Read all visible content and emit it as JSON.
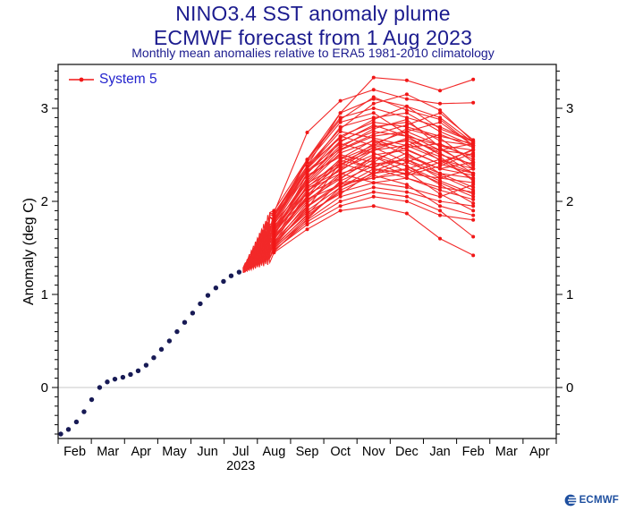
{
  "header": {
    "title": "NINO3.4 SST anomaly plume",
    "subtitle": "ECMWF forecast from 1 Aug 2023",
    "note": "Monthly mean anomalies relative to ERA5 1981-2010 climatology"
  },
  "legend": {
    "label": "System 5"
  },
  "footer": {
    "logo_text": "ECMWF"
  },
  "colors": {
    "title_navy": "#1b1b8e",
    "legend_blue": "#2323cd",
    "observed_navy": "#171a55",
    "ensemble_red": "#f11717",
    "zero_line": "#c9c9c9",
    "axis_black": "#000000",
    "logo_blue": "#1e4f9f"
  },
  "chart_data": {
    "type": "line",
    "title": "NINO3.4 SST anomaly plume",
    "subtitle": "ECMWF forecast from 1 Aug 2023",
    "annotation": "Monthly mean anomalies relative to ERA5 1981-2010 climatology",
    "ylabel": "Anomaly (deg C)",
    "ylim": [
      -0.55,
      3.47
    ],
    "yticks": [
      0,
      1,
      2,
      3
    ],
    "y_minor_step": 0.1,
    "grid": "zero-line-only",
    "legend_position": "top-left-inside",
    "x_month_labels": [
      "Feb",
      "Mar",
      "Apr",
      "May",
      "Jun",
      "Jul",
      "Aug",
      "Sep",
      "Oct",
      "Nov",
      "Dec",
      "Jan",
      "Feb",
      "Mar",
      "Apr"
    ],
    "year_label": "2023",
    "year_under_month_index": 5,
    "observed": {
      "name": "observed-analysis (blue dots, weekly)",
      "t_months_from_feb1_2023": [
        0.08,
        0.31,
        0.55,
        0.78,
        1.01,
        1.25,
        1.48,
        1.71,
        1.95,
        2.18,
        2.41,
        2.65,
        2.88,
        3.11,
        3.35,
        3.58,
        3.81,
        4.05,
        4.28,
        4.51,
        4.75,
        4.98,
        5.21,
        5.45
      ],
      "values": [
        -0.5,
        -0.45,
        -0.37,
        -0.26,
        -0.13,
        0.0,
        0.06,
        0.09,
        0.11,
        0.14,
        0.18,
        0.24,
        0.32,
        0.41,
        0.5,
        0.6,
        0.7,
        0.8,
        0.9,
        0.99,
        1.07,
        1.14,
        1.2,
        1.24
      ]
    },
    "forecast": {
      "name": "System 5",
      "start": {
        "t_months_from_feb1_2023": 5.57,
        "value": 1.26
      },
      "month_names": [
        "Aug",
        "Sep",
        "Oct",
        "Nov",
        "Dec",
        "Jan",
        "Feb"
      ],
      "month_centers_t": [
        6.5,
        7.5,
        8.5,
        9.5,
        10.5,
        11.5,
        12.5
      ],
      "members": [
        [
          1.48,
          1.75,
          1.95,
          2.05,
          2.0,
          1.85,
          1.8
        ],
        [
          1.5,
          1.8,
          2.05,
          2.15,
          2.1,
          2.0,
          1.95
        ],
        [
          1.52,
          1.85,
          2.1,
          2.2,
          2.25,
          2.15,
          2.1
        ],
        [
          1.55,
          1.9,
          2.15,
          2.3,
          2.35,
          2.2,
          2.05
        ],
        [
          1.57,
          1.95,
          2.2,
          2.25,
          2.3,
          2.25,
          2.2
        ],
        [
          1.6,
          2.0,
          2.3,
          2.4,
          2.45,
          2.3,
          2.25
        ],
        [
          1.62,
          2.05,
          2.35,
          2.5,
          2.55,
          2.4,
          2.3
        ],
        [
          1.65,
          2.1,
          2.4,
          2.55,
          2.6,
          2.45,
          2.35
        ],
        [
          1.68,
          2.15,
          2.45,
          2.6,
          2.65,
          2.55,
          2.5
        ],
        [
          1.7,
          2.2,
          2.55,
          2.7,
          2.75,
          2.6,
          2.55
        ],
        [
          1.72,
          2.25,
          2.6,
          2.75,
          2.7,
          2.5,
          2.4
        ],
        [
          1.75,
          2.3,
          2.65,
          2.8,
          2.85,
          2.65,
          2.6
        ],
        [
          1.78,
          2.35,
          2.7,
          2.85,
          2.8,
          2.7,
          2.62
        ],
        [
          1.8,
          2.35,
          2.8,
          2.9,
          2.95,
          2.75,
          2.6
        ],
        [
          1.83,
          2.45,
          2.9,
          3.0,
          2.9,
          2.8,
          2.65
        ],
        [
          1.85,
          2.38,
          2.95,
          3.1,
          3.02,
          2.9,
          2.63
        ],
        [
          1.88,
          2.74,
          3.08,
          3.2,
          3.1,
          3.05,
          3.06
        ],
        [
          1.9,
          2.45,
          2.95,
          3.33,
          3.3,
          3.19,
          3.31
        ],
        [
          1.45,
          1.7,
          1.9,
          1.95,
          1.87,
          1.6,
          1.42
        ],
        [
          1.47,
          1.78,
          2.0,
          2.1,
          2.05,
          1.9,
          1.62
        ],
        [
          1.66,
          2.12,
          2.3,
          2.2,
          2.15,
          2.05,
          2.18
        ],
        [
          1.58,
          2.18,
          2.52,
          2.65,
          2.5,
          2.35,
          2.28
        ],
        [
          1.74,
          2.08,
          2.25,
          2.45,
          2.58,
          2.62,
          2.45
        ],
        [
          1.53,
          1.92,
          2.42,
          2.58,
          2.42,
          2.28,
          2.12
        ],
        [
          1.82,
          2.28,
          2.48,
          2.35,
          2.3,
          2.42,
          2.55
        ],
        [
          1.63,
          2.02,
          2.18,
          2.42,
          2.62,
          2.48,
          2.22
        ],
        [
          1.77,
          2.33,
          2.62,
          2.52,
          2.38,
          2.18,
          1.98
        ],
        [
          1.69,
          2.22,
          2.58,
          2.78,
          2.88,
          2.58,
          2.35
        ],
        [
          1.56,
          1.88,
          2.08,
          2.32,
          2.48,
          2.35,
          2.42
        ],
        [
          1.86,
          2.42,
          2.85,
          2.95,
          2.72,
          2.55,
          2.62
        ],
        [
          1.49,
          1.83,
          2.12,
          2.28,
          2.18,
          1.95,
          1.85
        ],
        [
          1.71,
          2.16,
          2.38,
          2.62,
          2.75,
          2.85,
          2.6
        ],
        [
          1.61,
          2.06,
          2.44,
          2.36,
          2.52,
          2.3,
          2.15
        ],
        [
          1.79,
          2.36,
          2.75,
          2.68,
          2.6,
          2.72,
          2.58
        ],
        [
          1.54,
          1.98,
          2.28,
          2.48,
          2.32,
          2.08,
          1.9
        ],
        [
          1.87,
          2.38,
          2.68,
          2.88,
          3.02,
          2.78,
          2.64
        ],
        [
          1.64,
          2.26,
          2.5,
          2.42,
          2.28,
          2.38,
          2.52
        ],
        [
          1.73,
          2.14,
          2.33,
          2.55,
          2.68,
          2.52,
          2.3
        ],
        [
          1.51,
          1.86,
          2.22,
          2.38,
          2.45,
          2.25,
          2.35
        ],
        [
          1.84,
          2.32,
          2.56,
          2.72,
          2.82,
          2.95,
          2.66
        ],
        [
          1.59,
          2.04,
          2.36,
          2.58,
          2.66,
          2.44,
          2.24
        ],
        [
          1.67,
          2.24,
          2.64,
          2.82,
          2.7,
          2.6,
          2.48
        ],
        [
          1.76,
          2.19,
          2.41,
          2.3,
          2.42,
          2.56,
          2.38
        ],
        [
          1.46,
          1.81,
          2.15,
          2.35,
          2.25,
          2.12,
          2.02
        ],
        [
          1.81,
          2.38,
          2.78,
          3.05,
          3.15,
          2.98,
          2.64
        ],
        [
          1.55,
          2.1,
          2.46,
          2.66,
          2.56,
          2.4,
          2.56
        ],
        [
          1.7,
          2.02,
          2.24,
          2.48,
          2.38,
          2.22,
          2.08
        ],
        [
          1.62,
          2.3,
          2.7,
          2.6,
          2.78,
          2.68,
          2.42
        ],
        [
          1.78,
          2.44,
          2.88,
          3.12,
          2.98,
          2.88,
          2.6
        ],
        [
          1.52,
          1.94,
          2.18,
          2.25,
          2.35,
          2.45,
          2.3
        ]
      ]
    }
  }
}
